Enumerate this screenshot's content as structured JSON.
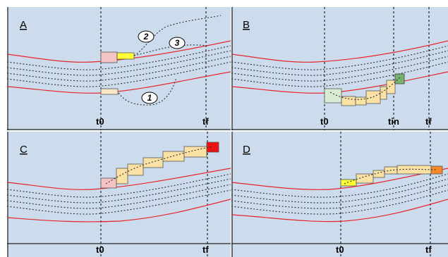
{
  "panels": [
    {
      "id": "A",
      "label": "A",
      "t0_label": "t0",
      "tf_label": "tf"
    },
    {
      "id": "B",
      "label": "B",
      "t0_label": "t0",
      "tin_label": "tin",
      "tf_label": "tf"
    },
    {
      "id": "C",
      "label": "C",
      "t0_label": "t0",
      "tf_label": "tf"
    },
    {
      "id": "D",
      "label": "D",
      "t0_label": "t0",
      "tf_label": "tf"
    }
  ],
  "path_labels": [
    "1",
    "2",
    "3"
  ],
  "colors": {
    "background": "#ccdcec",
    "boundary": "#e8252b",
    "trajectory": "#303030",
    "box_pink": "#f4c4c4",
    "box_tan": "#fbe2a4",
    "box_yellow": "#ffff33",
    "box_green": "#78b06e",
    "box_pale_green": "#d8ecd4",
    "box_red": "#ee1111",
    "box_orange": "#f68a28"
  }
}
